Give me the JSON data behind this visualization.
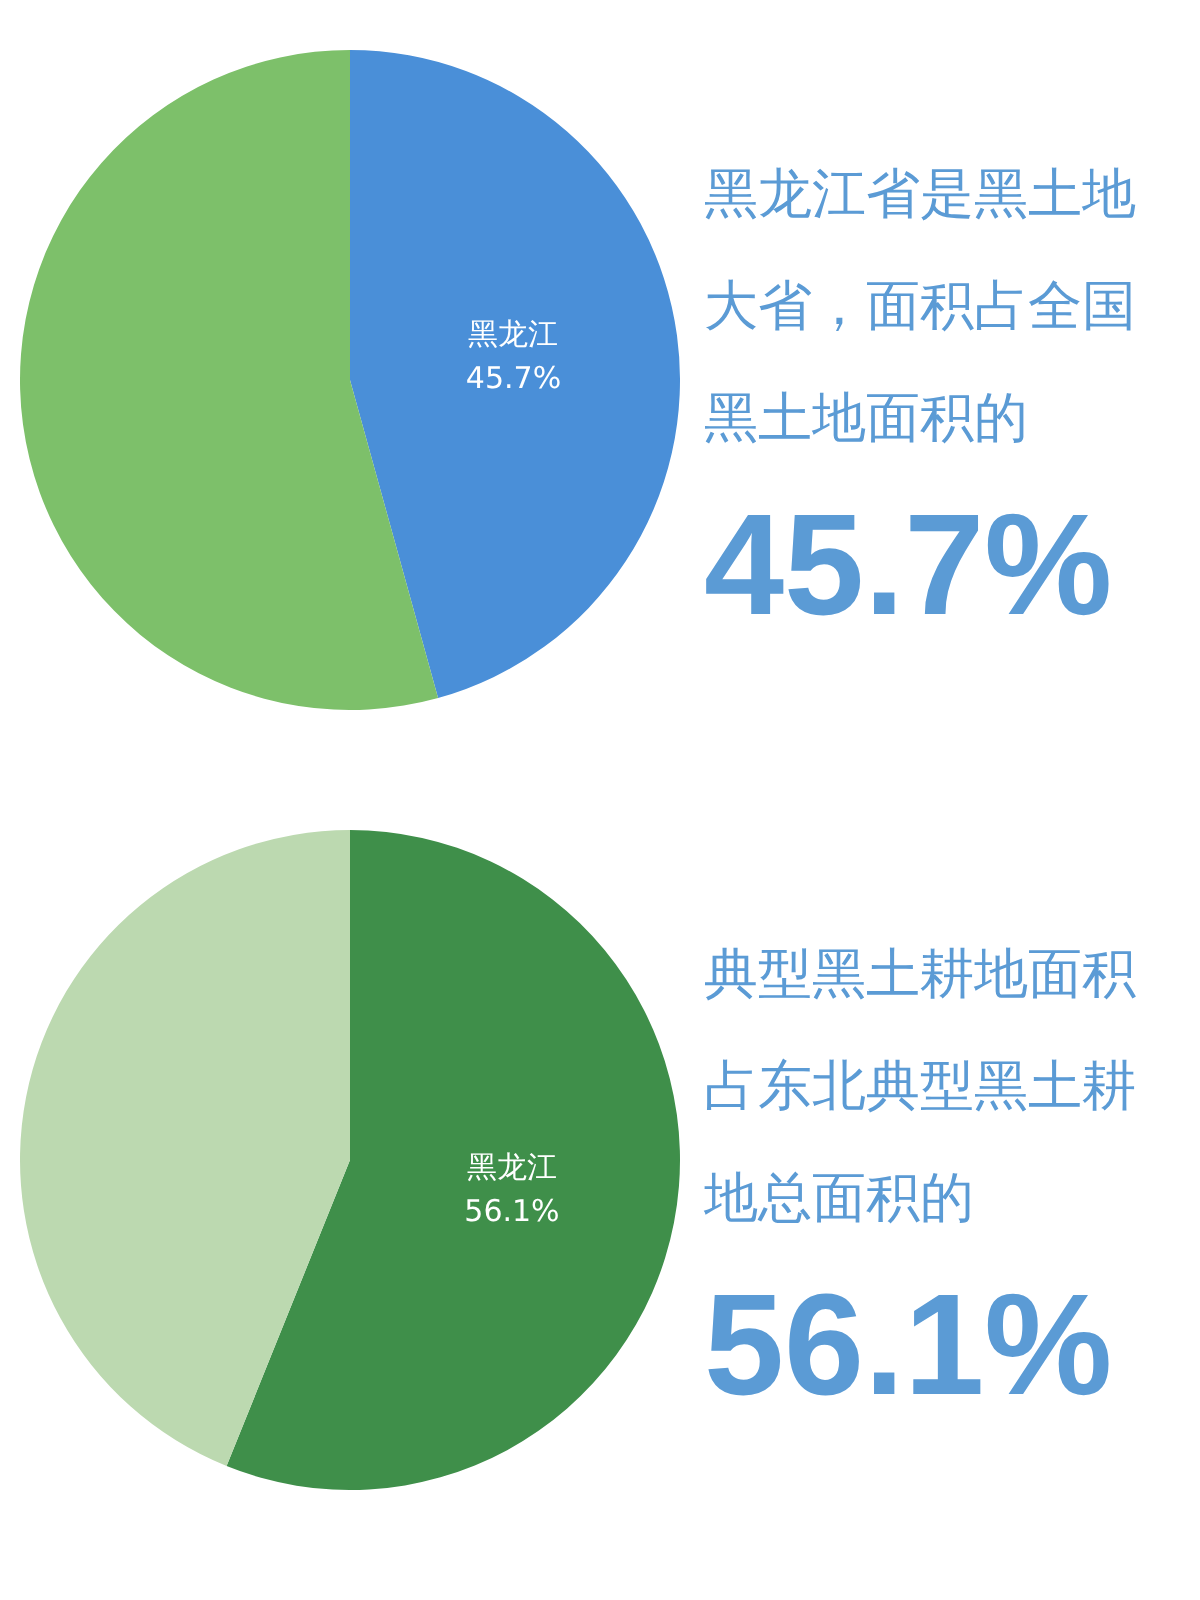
{
  "chart_data": [
    {
      "type": "pie",
      "categories": [
        "黑龙江",
        null
      ],
      "values": [
        45.7,
        54.3
      ],
      "colors": [
        "#4a8fd8",
        "#7dc06a"
      ],
      "value_labels": [
        "45.7%",
        null
      ],
      "legend": false,
      "annotations": [
        "黑龙江省是黑土地大省，面积占全国黑土地面积的",
        "45.7%"
      ]
    },
    {
      "type": "pie",
      "categories": [
        "黑龙江",
        null
      ],
      "values": [
        56.1,
        43.9
      ],
      "colors": [
        "#3f8f4a",
        "#bcd9b0"
      ],
      "value_labels": [
        "56.1%",
        null
      ],
      "legend": false,
      "annotations": [
        "典型黑土耕地面积占东北典型黑土耕地总面积的",
        "56.1%"
      ]
    }
  ]
}
